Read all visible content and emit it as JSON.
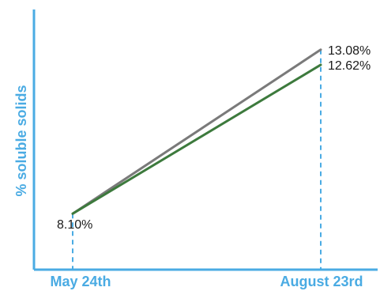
{
  "chart_data": {
    "type": "line",
    "title": "",
    "xlabel": "",
    "ylabel": "% soluble solids",
    "categories": [
      "May 24th",
      "August 23rd"
    ],
    "series": [
      {
        "values": [
          8.1,
          13.08
        ],
        "color": "#7a7a7a"
      },
      {
        "values": [
          8.1,
          12.62
        ],
        "color": "#3d7a3d"
      }
    ],
    "data_labels": [
      "8.10%",
      "13.08%",
      "12.62%"
    ],
    "ylim": [
      6.4,
      14.3
    ],
    "grid": false,
    "legend": "none",
    "axis_color": "#4aabe3"
  }
}
